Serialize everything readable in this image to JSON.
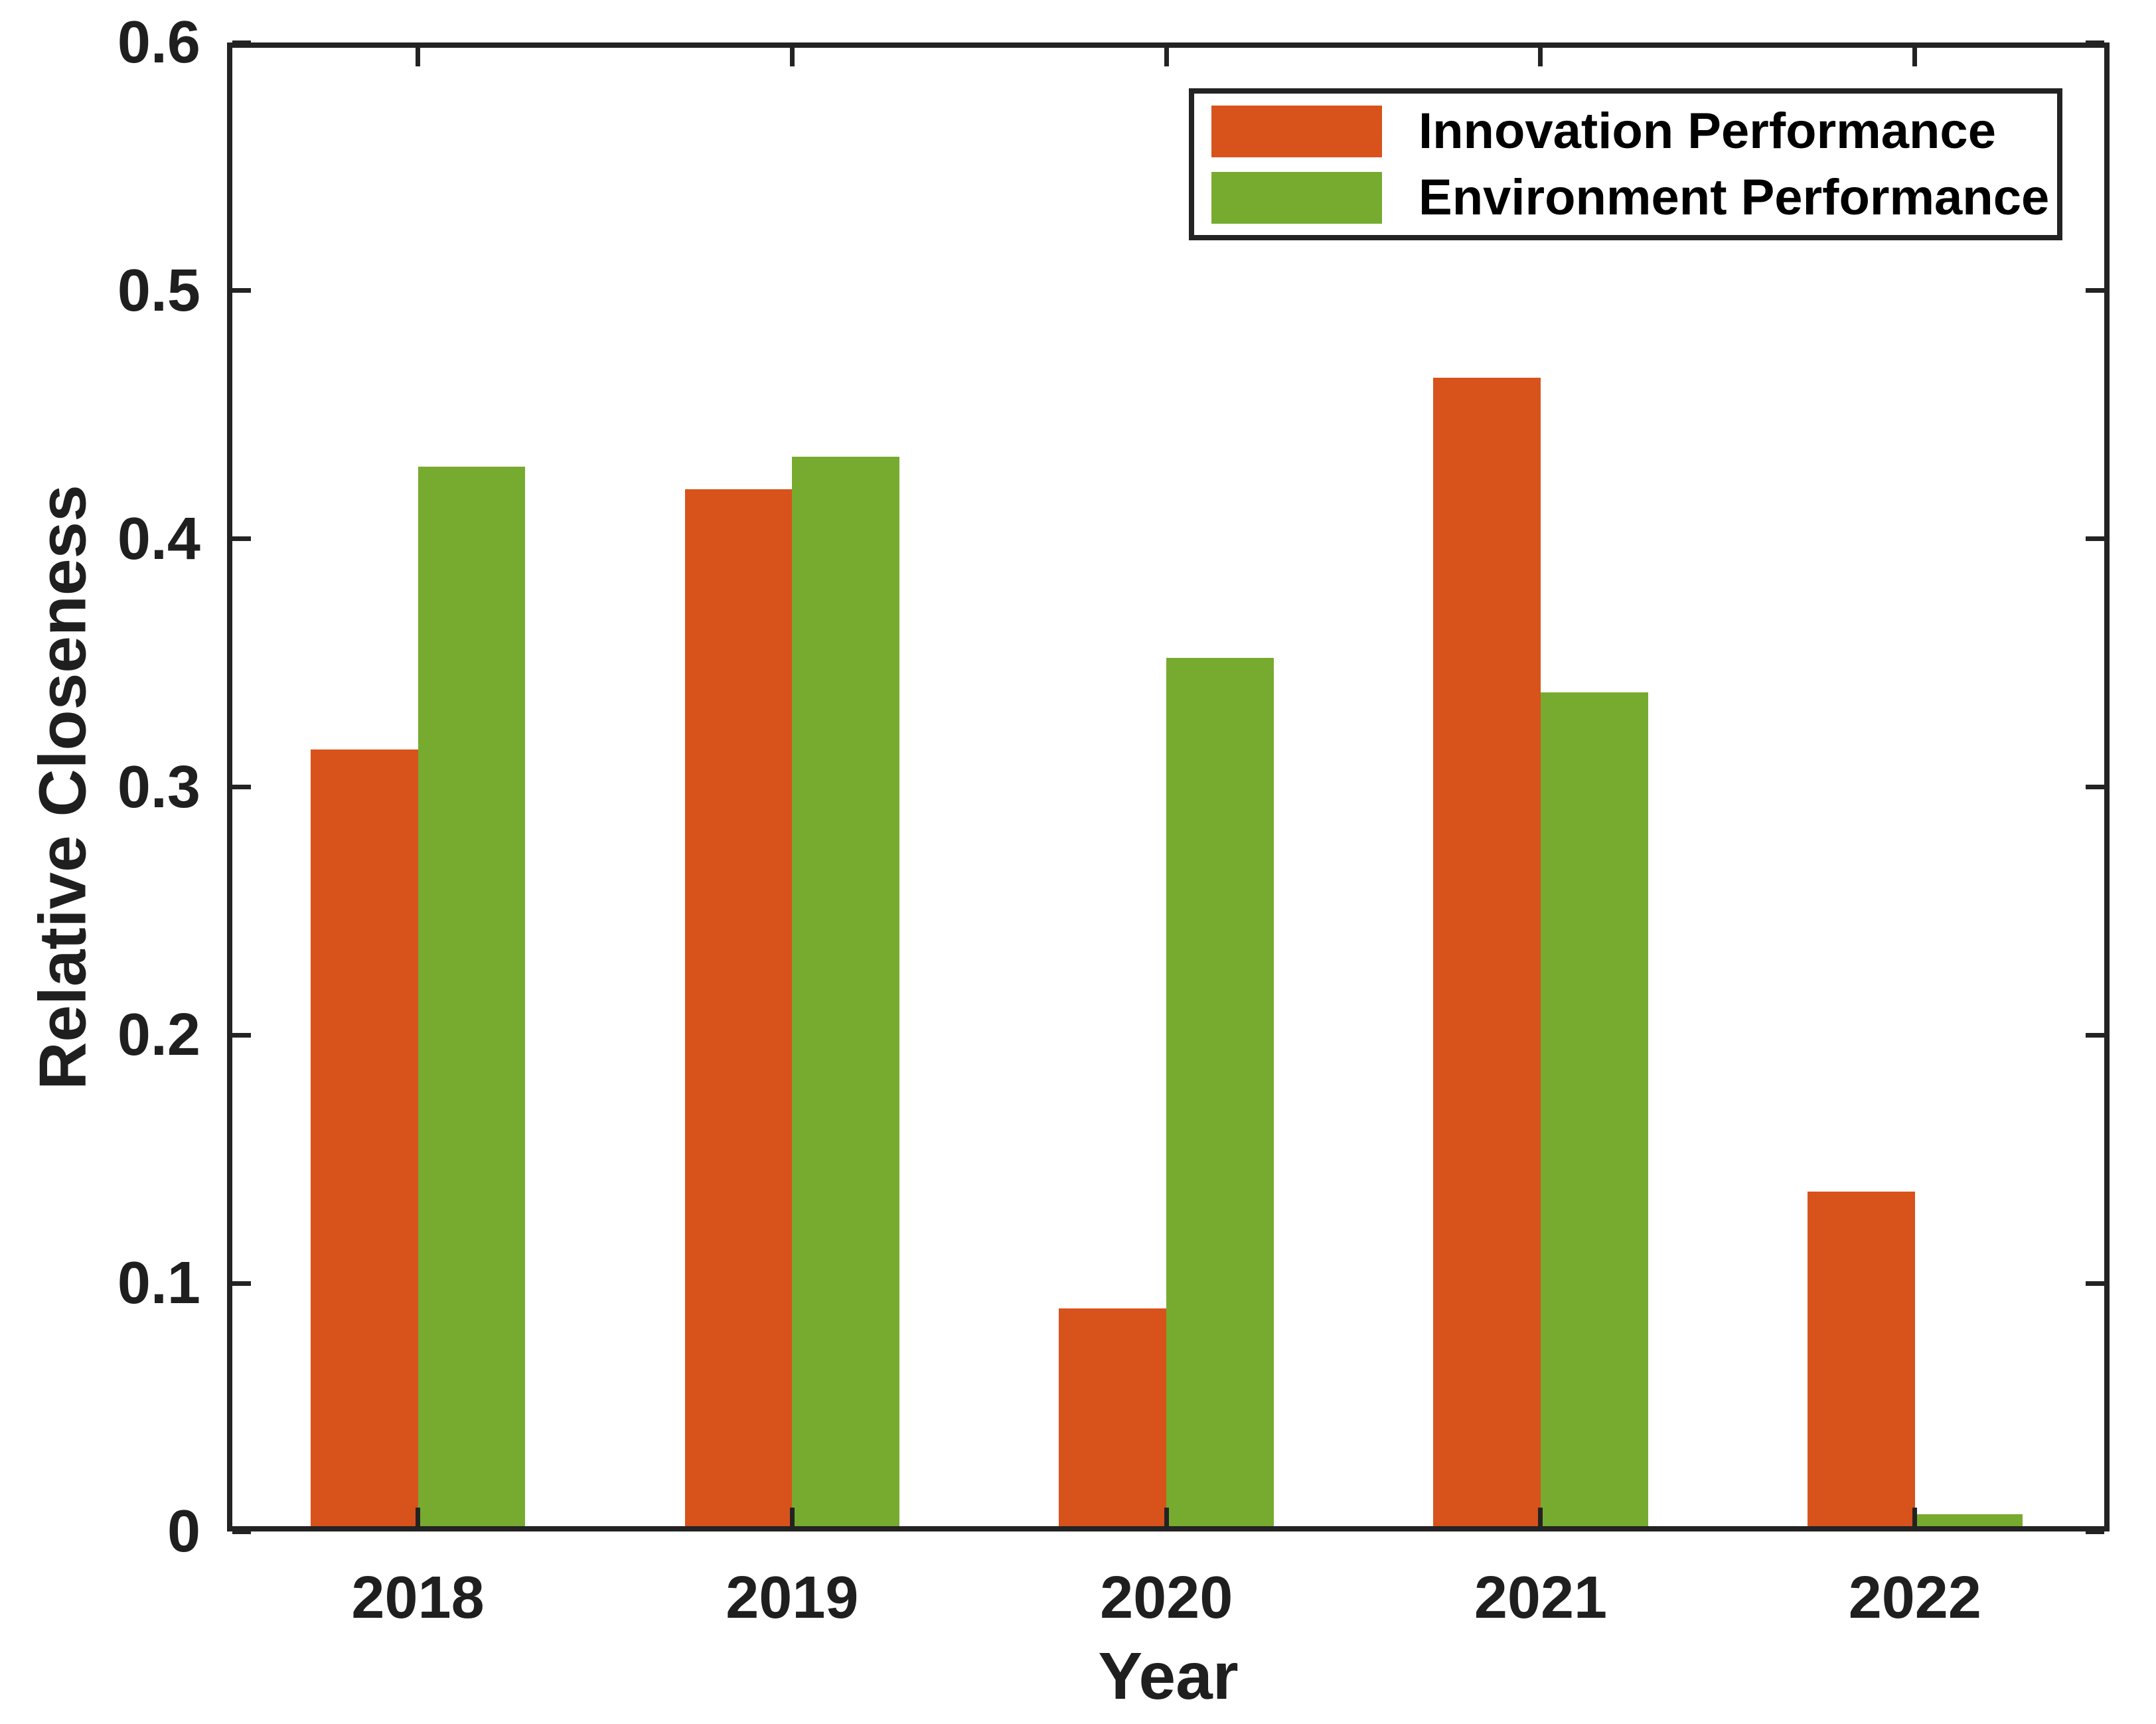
{
  "figure": {
    "background": "#ffffff",
    "axis_color": "#232323",
    "text_color": "#1f1f1f"
  },
  "chart_data": {
    "type": "bar",
    "title": "",
    "xlabel": "Year",
    "ylabel": "Relative Closeness",
    "categories": [
      "2018",
      "2019",
      "2020",
      "2021",
      "2022"
    ],
    "series": [
      {
        "name": "Innovation Performance",
        "color": "#d7531b",
        "values": [
          0.315,
          0.42,
          0.09,
          0.465,
          0.137
        ]
      },
      {
        "name": "Environment Performance",
        "color": "#77ab2f",
        "values": [
          0.429,
          0.433,
          0.352,
          0.338,
          0.007
        ]
      }
    ],
    "ylim": [
      0,
      0.6
    ],
    "yticks": [
      0,
      0.1,
      0.2,
      0.3,
      0.4,
      0.5,
      0.6
    ],
    "ytick_labels": [
      "0",
      "0.1",
      "0.2",
      "0.3",
      "0.4",
      "0.5",
      "0.6"
    ],
    "xlim": [
      0.49,
      5.52
    ],
    "bar_width_data": 0.287,
    "grid": false,
    "legend_position": "top-right"
  }
}
